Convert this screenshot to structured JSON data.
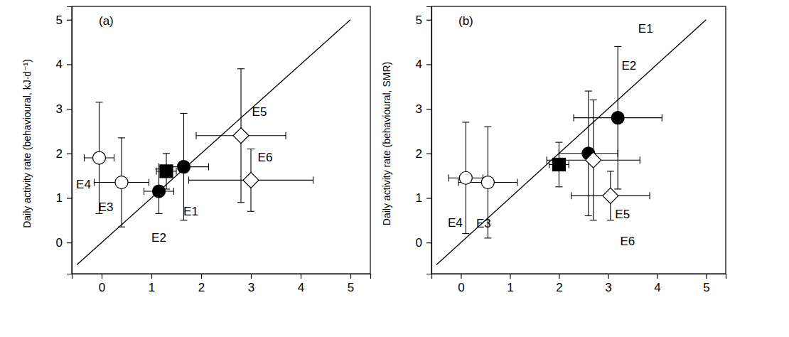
{
  "chart_data": [
    {
      "type": "scatter",
      "title": "(a)",
      "y_label": "Daily activity rate (behavioural, kJ·d⁻¹)",
      "xlim": [
        -0.6,
        5.4
      ],
      "ylim": [
        -0.7,
        5.3
      ],
      "xticks": [
        0,
        1,
        2,
        3,
        4,
        5
      ],
      "yticks": [
        0,
        1,
        2,
        3,
        4,
        5
      ],
      "grid": false,
      "reference_line": {
        "x": [
          -0.5,
          5
        ],
        "y": [
          -0.5,
          5
        ]
      },
      "series": [
        {
          "marker": "circle-open",
          "color": "#000000",
          "labels": [
            "E4",
            "E3"
          ],
          "x": [
            -0.05,
            0.4
          ],
          "values": [
            1.9,
            1.35
          ],
          "x_err": [
            0.3,
            0.55
          ],
          "y_err": [
            1.25,
            1.0
          ]
        },
        {
          "marker": "square",
          "color": "#000000",
          "labels": [
            null
          ],
          "x": [
            1.3
          ],
          "values": [
            1.6
          ],
          "x_err": [
            0.2
          ],
          "y_err": [
            0.4
          ]
        },
        {
          "marker": "circle",
          "color": "#000000",
          "labels": [
            "E1",
            "E2"
          ],
          "x": [
            1.65,
            1.15
          ],
          "values": [
            1.7,
            1.15
          ],
          "x_err": [
            0.5,
            0.3
          ],
          "y_err": [
            1.2,
            0.5
          ]
        },
        {
          "marker": "diamond-open",
          "color": "#000000",
          "labels": [
            "E5",
            "E6"
          ],
          "x": [
            2.8,
            3.0
          ],
          "values": [
            2.4,
            1.4
          ],
          "x_err": [
            0.9,
            1.25
          ],
          "y_err": [
            1.5,
            0.7
          ]
        }
      ]
    },
    {
      "type": "scatter",
      "title": "(b)",
      "y_label": "Daily activity rate (behavioural, SMR)",
      "xlim": [
        -0.6,
        5.4
      ],
      "ylim": [
        -0.7,
        5.3
      ],
      "xticks": [
        0,
        1,
        2,
        3,
        4,
        5
      ],
      "yticks": [
        0,
        1,
        2,
        3,
        4,
        5
      ],
      "grid": false,
      "reference_line": {
        "x": [
          -0.5,
          5
        ],
        "y": [
          -0.5,
          5
        ]
      },
      "series": [
        {
          "marker": "circle-open",
          "color": "#000000",
          "labels": [
            "E4",
            "E3"
          ],
          "x": [
            0.1,
            0.55
          ],
          "values": [
            1.45,
            1.35
          ],
          "x_err": [
            0.35,
            0.6
          ],
          "y_err": [
            1.25,
            1.25
          ]
        },
        {
          "marker": "square",
          "color": "#000000",
          "labels": [
            null
          ],
          "x": [
            2.0
          ],
          "values": [
            1.75
          ],
          "x_err": [
            0.2
          ],
          "y_err": [
            0.5
          ]
        },
        {
          "marker": "circle",
          "color": "#000000",
          "labels": [
            "E1",
            "E2"
          ],
          "x": [
            3.2,
            2.6
          ],
          "values": [
            2.8,
            2.0
          ],
          "x_err": [
            0.9,
            0.6
          ],
          "y_err": [
            1.6,
            1.4
          ]
        },
        {
          "marker": "diamond-open",
          "color": "#000000",
          "labels": [
            "E5",
            "E6"
          ],
          "x": [
            2.7,
            3.05
          ],
          "values": [
            1.85,
            1.05
          ],
          "x_err": [
            0.95,
            0.8
          ],
          "y_err": [
            1.35,
            0.55
          ]
        }
      ]
    }
  ]
}
